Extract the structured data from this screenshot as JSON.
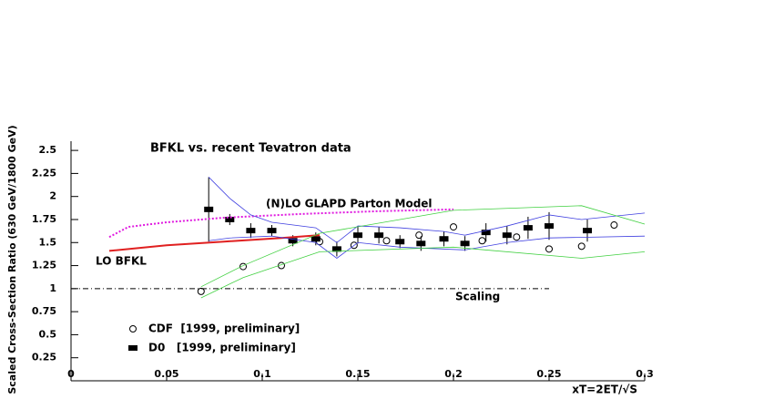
{
  "chart_data": {
    "type": "scatter",
    "title": "BFKL vs. recent Tevatron data",
    "xlabel": "xT=2ET/√S",
    "ylabel": "Scaled Cross-Section Ratio (630 GeV/1800 GeV)",
    "xlim": [
      0,
      0.3
    ],
    "ylim": [
      0,
      2.6
    ],
    "xticks": [
      0,
      0.05,
      0.1,
      0.15,
      0.2,
      0.25,
      0.3
    ],
    "yticks": [
      0.25,
      0.5,
      0.75,
      1,
      1.25,
      1.5,
      1.75,
      2,
      2.25,
      2.5
    ],
    "annotations": [
      "(N)LO GLAPD Parton Model",
      "LO BFKL",
      "Scaling"
    ],
    "series": [
      {
        "name": "CDF  [1999, preliminary]",
        "marker": "circle",
        "color": "#000000",
        "x": [
          0.068,
          0.09,
          0.11,
          0.13,
          0.148,
          0.165,
          0.182,
          0.2,
          0.215,
          0.233,
          0.25,
          0.267,
          0.284
        ],
        "values": [
          0.97,
          1.24,
          1.25,
          1.51,
          1.47,
          1.52,
          1.58,
          1.67,
          1.52,
          1.56,
          1.43,
          1.46,
          1.69
        ]
      },
      {
        "name": "D0   [1999, preliminary]",
        "marker": "rect",
        "color": "#000000",
        "x": [
          0.072,
          0.083,
          0.094,
          0.105,
          0.116,
          0.128,
          0.139,
          0.15,
          0.161,
          0.172,
          0.183,
          0.195,
          0.206,
          0.217,
          0.228,
          0.239,
          0.25,
          0.27
        ],
        "values": [
          1.86,
          1.75,
          1.63,
          1.63,
          1.52,
          1.54,
          1.43,
          1.58,
          1.58,
          1.51,
          1.49,
          1.54,
          1.49,
          1.61,
          1.58,
          1.66,
          1.68,
          1.63
        ],
        "errors": [
          0.35,
          0.06,
          0.08,
          0.06,
          0.06,
          0.07,
          0.08,
          0.09,
          0.09,
          0.07,
          0.08,
          0.08,
          0.08,
          0.1,
          0.1,
          0.12,
          0.15,
          0.12
        ]
      },
      {
        "marker": "line",
        "dash": "dot",
        "color": "#e01ae0",
        "x": [
          0.02,
          0.03,
          0.05,
          0.08,
          0.12,
          0.16,
          0.2
        ],
        "values": [
          1.56,
          1.67,
          1.72,
          1.77,
          1.81,
          1.84,
          1.86
        ]
      },
      {
        "marker": "line",
        "dash": "solid",
        "color": "#e02020",
        "x": [
          0.02,
          0.05,
          0.08,
          0.11,
          0.13
        ],
        "values": [
          1.41,
          1.47,
          1.51,
          1.55,
          1.58
        ]
      },
      {
        "marker": "line",
        "dash": "dashdot",
        "color": "#000000",
        "x": [
          0,
          0.25
        ],
        "values": [
          1,
          1
        ]
      },
      {
        "marker": "line",
        "dash": "thin",
        "color": "#4040e0",
        "x": [
          0.072,
          0.083,
          0.094,
          0.105,
          0.128,
          0.139,
          0.15,
          0.172,
          0.195,
          0.206,
          0.228,
          0.25,
          0.267,
          0.3
        ],
        "values": [
          2.21,
          1.98,
          1.8,
          1.72,
          1.66,
          1.5,
          1.68,
          1.66,
          1.62,
          1.58,
          1.68,
          1.8,
          1.75,
          1.82
        ]
      },
      {
        "marker": "line",
        "dash": "thin",
        "color": "#4040e0",
        "x": [
          0.072,
          0.083,
          0.105,
          0.128,
          0.139,
          0.15,
          0.172,
          0.206,
          0.228,
          0.25,
          0.3
        ],
        "values": [
          1.52,
          1.55,
          1.57,
          1.5,
          1.33,
          1.5,
          1.45,
          1.42,
          1.5,
          1.55,
          1.57
        ]
      },
      {
        "marker": "line",
        "dash": "thin",
        "color": "#40d040",
        "x": [
          0.068,
          0.09,
          0.13,
          0.2,
          0.267,
          0.3
        ],
        "values": [
          1.02,
          1.25,
          1.6,
          1.85,
          1.9,
          1.7
        ]
      },
      {
        "marker": "line",
        "dash": "thin",
        "color": "#40d040",
        "x": [
          0.068,
          0.09,
          0.13,
          0.2,
          0.267,
          0.3
        ],
        "values": [
          0.9,
          1.12,
          1.4,
          1.45,
          1.33,
          1.4
        ]
      }
    ]
  }
}
